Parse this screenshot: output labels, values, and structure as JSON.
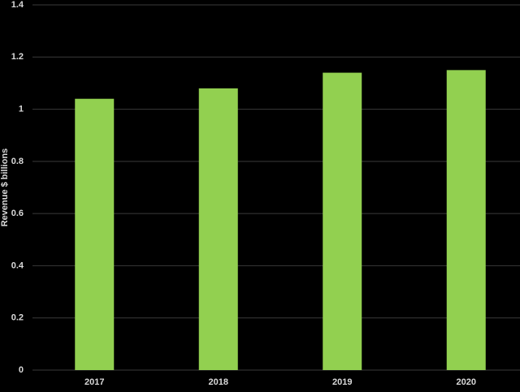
{
  "chart_data": {
    "type": "bar",
    "y_label": "Revenue $ billions",
    "categories": [
      "2017",
      "2018",
      "2019",
      "2020"
    ],
    "values": [
      1.04,
      1.08,
      1.14,
      1.15
    ],
    "color": "#92d050",
    "ylim": [
      0,
      1.4
    ],
    "yticks": [
      0,
      0.2,
      0.4,
      0.6,
      0.8,
      1,
      1.2,
      1.4
    ],
    "grid": true
  }
}
